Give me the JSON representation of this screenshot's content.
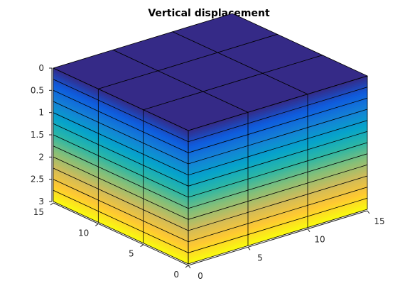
{
  "chart_data": {
    "type": "surface",
    "title": "Vertical displacement",
    "xlabel": "",
    "ylabel": "",
    "zlabel": "",
    "x_ticks": [
      "0",
      "5",
      "10",
      "15"
    ],
    "y_ticks": [
      "0",
      "5",
      "10",
      "15"
    ],
    "z_ticks": [
      "0",
      "0.5",
      "1",
      "1.5",
      "2",
      "2.5",
      "3"
    ],
    "xlim": [
      0,
      15
    ],
    "ylim": [
      0,
      15
    ],
    "zlim": [
      0,
      3
    ],
    "z_direction": "reversed",
    "grid": {
      "x_edges": [
        0,
        5,
        10,
        15
      ],
      "y_edges": [
        0,
        5,
        10,
        15
      ],
      "z_edges": [
        0,
        0.25,
        0.5,
        0.75,
        1.0,
        1.25,
        1.5,
        1.75,
        2.0,
        2.25,
        2.5,
        2.75,
        3.0
      ]
    },
    "colormap": {
      "name": "parula",
      "stops": [
        "#352a87",
        "#0f5cdd",
        "#1481d6",
        "#06a4ca",
        "#2eb7a4",
        "#87bf77",
        "#d1bb59",
        "#fec832",
        "#f9fb0e"
      ]
    },
    "color_range": [
      0,
      3
    ],
    "edge_color": "#000000"
  }
}
